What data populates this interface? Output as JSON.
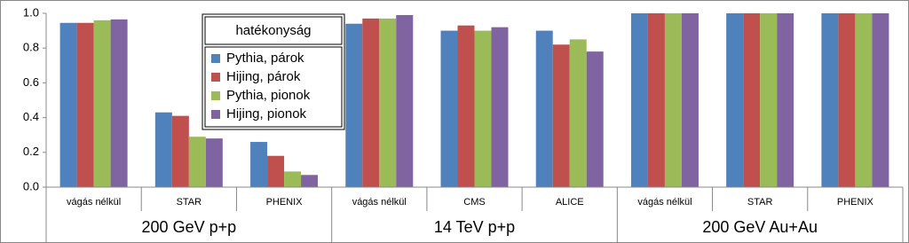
{
  "chart_data": {
    "type": "bar",
    "categories": [
      "vágás nélkül",
      "STAR",
      "PHENIX",
      "vágás nélkül",
      "CMS",
      "ALICE",
      "vágás nélkül",
      "STAR",
      "PHENIX"
    ],
    "group_labels": [
      "200 GeV p+p",
      "14 TeV p+p",
      "200 GeV Au+Au"
    ],
    "series": [
      {
        "name": "Pythia, párok",
        "color": "#4f81bd",
        "values": [
          0.945,
          0.43,
          0.26,
          0.94,
          0.9,
          0.9,
          1.0,
          1.0,
          1.0
        ]
      },
      {
        "name": "Hijing, párok",
        "color": "#c0504d",
        "values": [
          0.945,
          0.41,
          0.18,
          0.97,
          0.93,
          0.82,
          1.0,
          1.0,
          1.0
        ]
      },
      {
        "name": "Pythia, pionok",
        "color": "#9bbb59",
        "values": [
          0.96,
          0.29,
          0.09,
          0.97,
          0.9,
          0.85,
          1.0,
          1.0,
          1.0
        ]
      },
      {
        "name": "Hijing, pionok",
        "color": "#8064a2",
        "values": [
          0.965,
          0.28,
          0.07,
          0.99,
          0.92,
          0.78,
          1.0,
          1.0,
          1.0
        ]
      }
    ],
    "legend_title": "hatékonyság",
    "legend": "upper-left",
    "ylim": [
      0,
      1.0
    ],
    "yticks": [
      {
        "value": 0,
        "label": "0.0"
      },
      {
        "value": 0.2,
        "label": "0.2"
      },
      {
        "value": 0.4,
        "label": "0.4"
      },
      {
        "value": 0.6,
        "label": "0.6"
      },
      {
        "value": 0.8,
        "label": "0.8"
      },
      {
        "value": 1.0,
        "label": "1.0"
      }
    ],
    "grid": false
  }
}
